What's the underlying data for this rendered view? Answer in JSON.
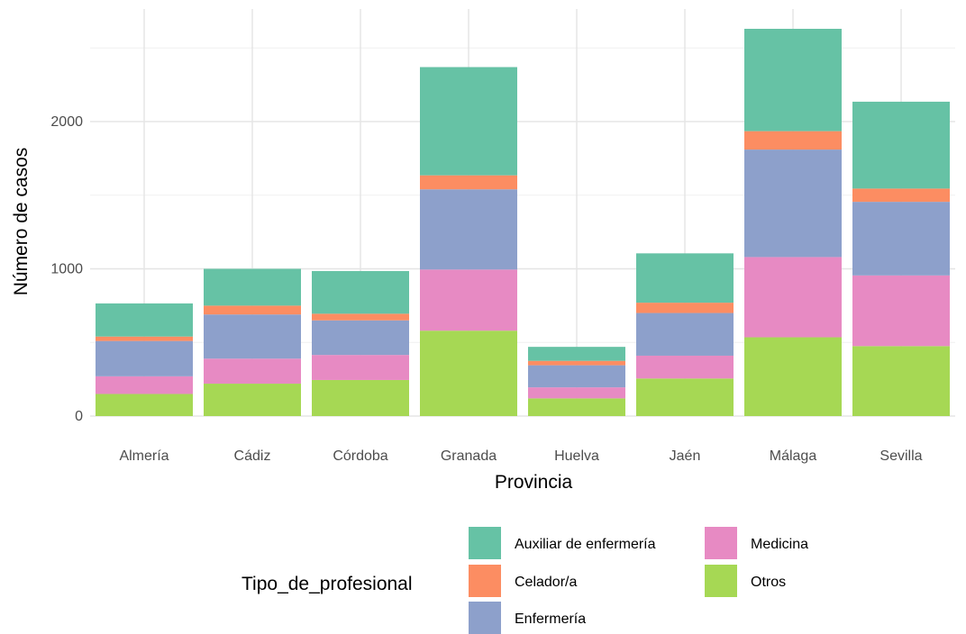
{
  "chart_data": {
    "type": "bar",
    "stacked": true,
    "title": "",
    "xlabel": "Provincia",
    "ylabel": "Número de casos",
    "ylim": [
      0,
      2750
    ],
    "yticks": [
      0,
      1000,
      2000
    ],
    "grid": true,
    "categories": [
      "Almería",
      "Cádiz",
      "Córdoba",
      "Granada",
      "Huelva",
      "Jaén",
      "Málaga",
      "Sevilla"
    ],
    "series": [
      {
        "name": "Otros",
        "color": "#a6d854",
        "values": [
          150,
          220,
          245,
          580,
          120,
          255,
          535,
          475
        ]
      },
      {
        "name": "Medicina",
        "color": "#e78ac3",
        "values": [
          120,
          170,
          170,
          415,
          75,
          155,
          545,
          480
        ]
      },
      {
        "name": "Enfermería",
        "color": "#8da0cb",
        "values": [
          240,
          300,
          235,
          545,
          150,
          290,
          730,
          500
        ]
      },
      {
        "name": "Celador/a",
        "color": "#fc8d62",
        "values": [
          30,
          60,
          45,
          95,
          30,
          70,
          125,
          90
        ]
      },
      {
        "name": "Auxiliar de enfermería",
        "color": "#66c2a5",
        "values": [
          225,
          250,
          290,
          735,
          95,
          335,
          695,
          590
        ]
      }
    ],
    "legend": {
      "title": "Tipo_de_profesional",
      "position": "bottom",
      "order": [
        "Auxiliar de enfermería",
        "Celador/a",
        "Enfermería",
        "Medicina",
        "Otros"
      ]
    }
  }
}
